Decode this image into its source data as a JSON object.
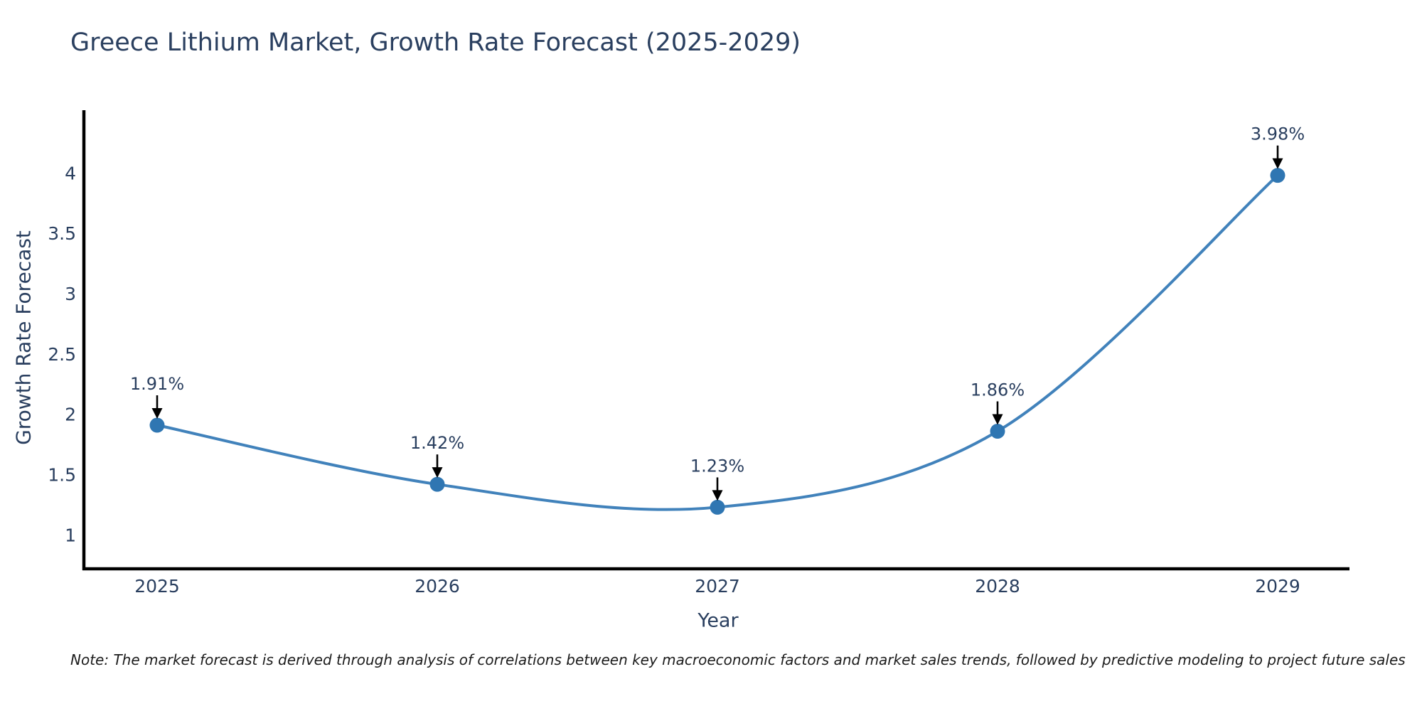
{
  "title": "Greece Lithium Market, Growth Rate Forecast (2025-2029)",
  "note": "Note: The market forecast is derived through analysis of correlations between key macroeconomic factors and market sales trends, followed by predictive modeling to project future sales",
  "chart_data": {
    "type": "line",
    "title": "Greece Lithium Market, Growth Rate Forecast (2025-2029)",
    "xlabel": "Year",
    "ylabel": "Growth Rate Forecast",
    "x": [
      2025,
      2026,
      2027,
      2028,
      2029
    ],
    "values": [
      1.91,
      1.42,
      1.23,
      1.86,
      3.98
    ],
    "point_labels": [
      "1.91%",
      "1.42%",
      "1.23%",
      "1.86%",
      "3.98%"
    ],
    "yticks": [
      "1",
      "1.5",
      "2",
      "2.5",
      "3",
      "3.5",
      "4"
    ],
    "ytick_values": [
      1,
      1.5,
      2,
      2.5,
      3,
      3.5,
      4
    ],
    "ylim": [
      0.72,
      4.52
    ],
    "line_shape": "spline",
    "grid": false,
    "legend": "none",
    "colors": {
      "line": "#4182bb",
      "marker": "#2f76b2",
      "axis": "#000000",
      "text": "#2a3f5f",
      "annotation_text": "#2a3f5f",
      "annotation_arrow": "#000000",
      "note": "#1c1c1c",
      "background": "#ffffff"
    }
  }
}
